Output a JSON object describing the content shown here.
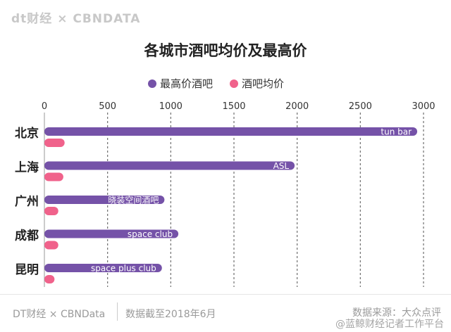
{
  "brand": {
    "text": "dt财经 × CBNDATA"
  },
  "footer": {
    "brand": "DT财经 × CBNData",
    "date_note": "数据截至2018年6月",
    "source": "数据来源：大众点评",
    "watermark": "@蓝鲸财经记者工作平台"
  },
  "colors": {
    "max_price": "#7552a8",
    "avg_price": "#f0628b"
  },
  "chart_data": {
    "type": "bar",
    "orientation": "horizontal",
    "title": "各城市酒吧均价及最高价",
    "categories": [
      "北京",
      "上海",
      "广州",
      "成都",
      "昆明"
    ],
    "series": [
      {
        "name": "最高价酒吧",
        "values": [
          2950,
          1980,
          950,
          1060,
          930
        ],
        "labels": [
          "tun bar",
          "ASL",
          "晓装空间酒吧",
          "space club",
          "space plus club"
        ]
      },
      {
        "name": "酒吧均价",
        "values": [
          160,
          150,
          110,
          110,
          80
        ]
      }
    ],
    "xlim": [
      0,
      3000
    ],
    "xticks": [
      0,
      500,
      1000,
      1500,
      2000,
      2500,
      3000
    ],
    "grid": "vertical dashed",
    "legend": "top-center"
  }
}
